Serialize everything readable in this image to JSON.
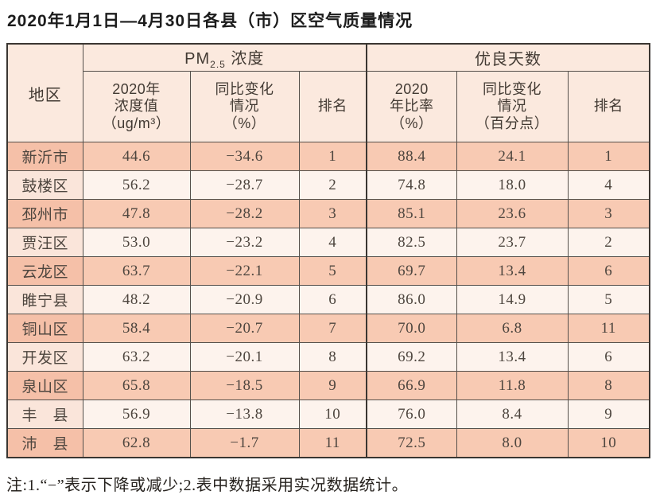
{
  "title": "2020年1月1日—4月30日各县（市）区空气质量情况",
  "table": {
    "region_header": "地区",
    "pm_group": {
      "prefix": "PM",
      "sub": "2.5",
      "suffix": " 浓度"
    },
    "good_days_group": "优良天数",
    "sub_headers": {
      "pm_value": "2020年\n浓度值\n（ug/m³）",
      "pm_change": "同比变化\n情况\n（%）",
      "pm_rank": "排名",
      "good_ratio": "2020\n年比率\n（%）",
      "good_change": "同比变化\n情况\n（百分点）",
      "good_rank": "排名"
    },
    "rows": [
      [
        "新沂市",
        "44.6",
        "−34.6",
        "1",
        "88.4",
        "24.1",
        "1"
      ],
      [
        "鼓楼区",
        "56.2",
        "−28.7",
        "2",
        "74.8",
        "18.0",
        "4"
      ],
      [
        "邳州市",
        "47.8",
        "−28.2",
        "3",
        "85.1",
        "23.6",
        "3"
      ],
      [
        "贾汪区",
        "53.0",
        "−23.2",
        "4",
        "82.5",
        "23.7",
        "2"
      ],
      [
        "云龙区",
        "63.7",
        "−22.1",
        "5",
        "69.7",
        "13.4",
        "6"
      ],
      [
        "睢宁县",
        "48.2",
        "−20.9",
        "6",
        "86.0",
        "14.9",
        "5"
      ],
      [
        "铜山区",
        "58.4",
        "−20.7",
        "7",
        "70.0",
        "6.8",
        "11"
      ],
      [
        "开发区",
        "63.2",
        "−20.1",
        "8",
        "69.2",
        "13.4",
        "6"
      ],
      [
        "泉山区",
        "65.8",
        "−18.5",
        "9",
        "66.9",
        "11.8",
        "8"
      ],
      [
        "丰　县",
        "56.9",
        "−13.8",
        "10",
        "76.0",
        "8.4",
        "9"
      ],
      [
        "沛　县",
        "62.8",
        "−1.7",
        "11",
        "72.5",
        "8.0",
        "10"
      ]
    ]
  },
  "note": "注:1.“−”表示下降或减少;2.表中数据采用实况数据统计。",
  "colors": {
    "row_odd": "#f8cab3",
    "row_even": "#fdf3ed",
    "region_odd": "#f5c0a8",
    "region_even": "#fae5da",
    "header_bg": "#fbe9de",
    "border_dark": "#3a3632",
    "text_dark": "#4e463f"
  }
}
